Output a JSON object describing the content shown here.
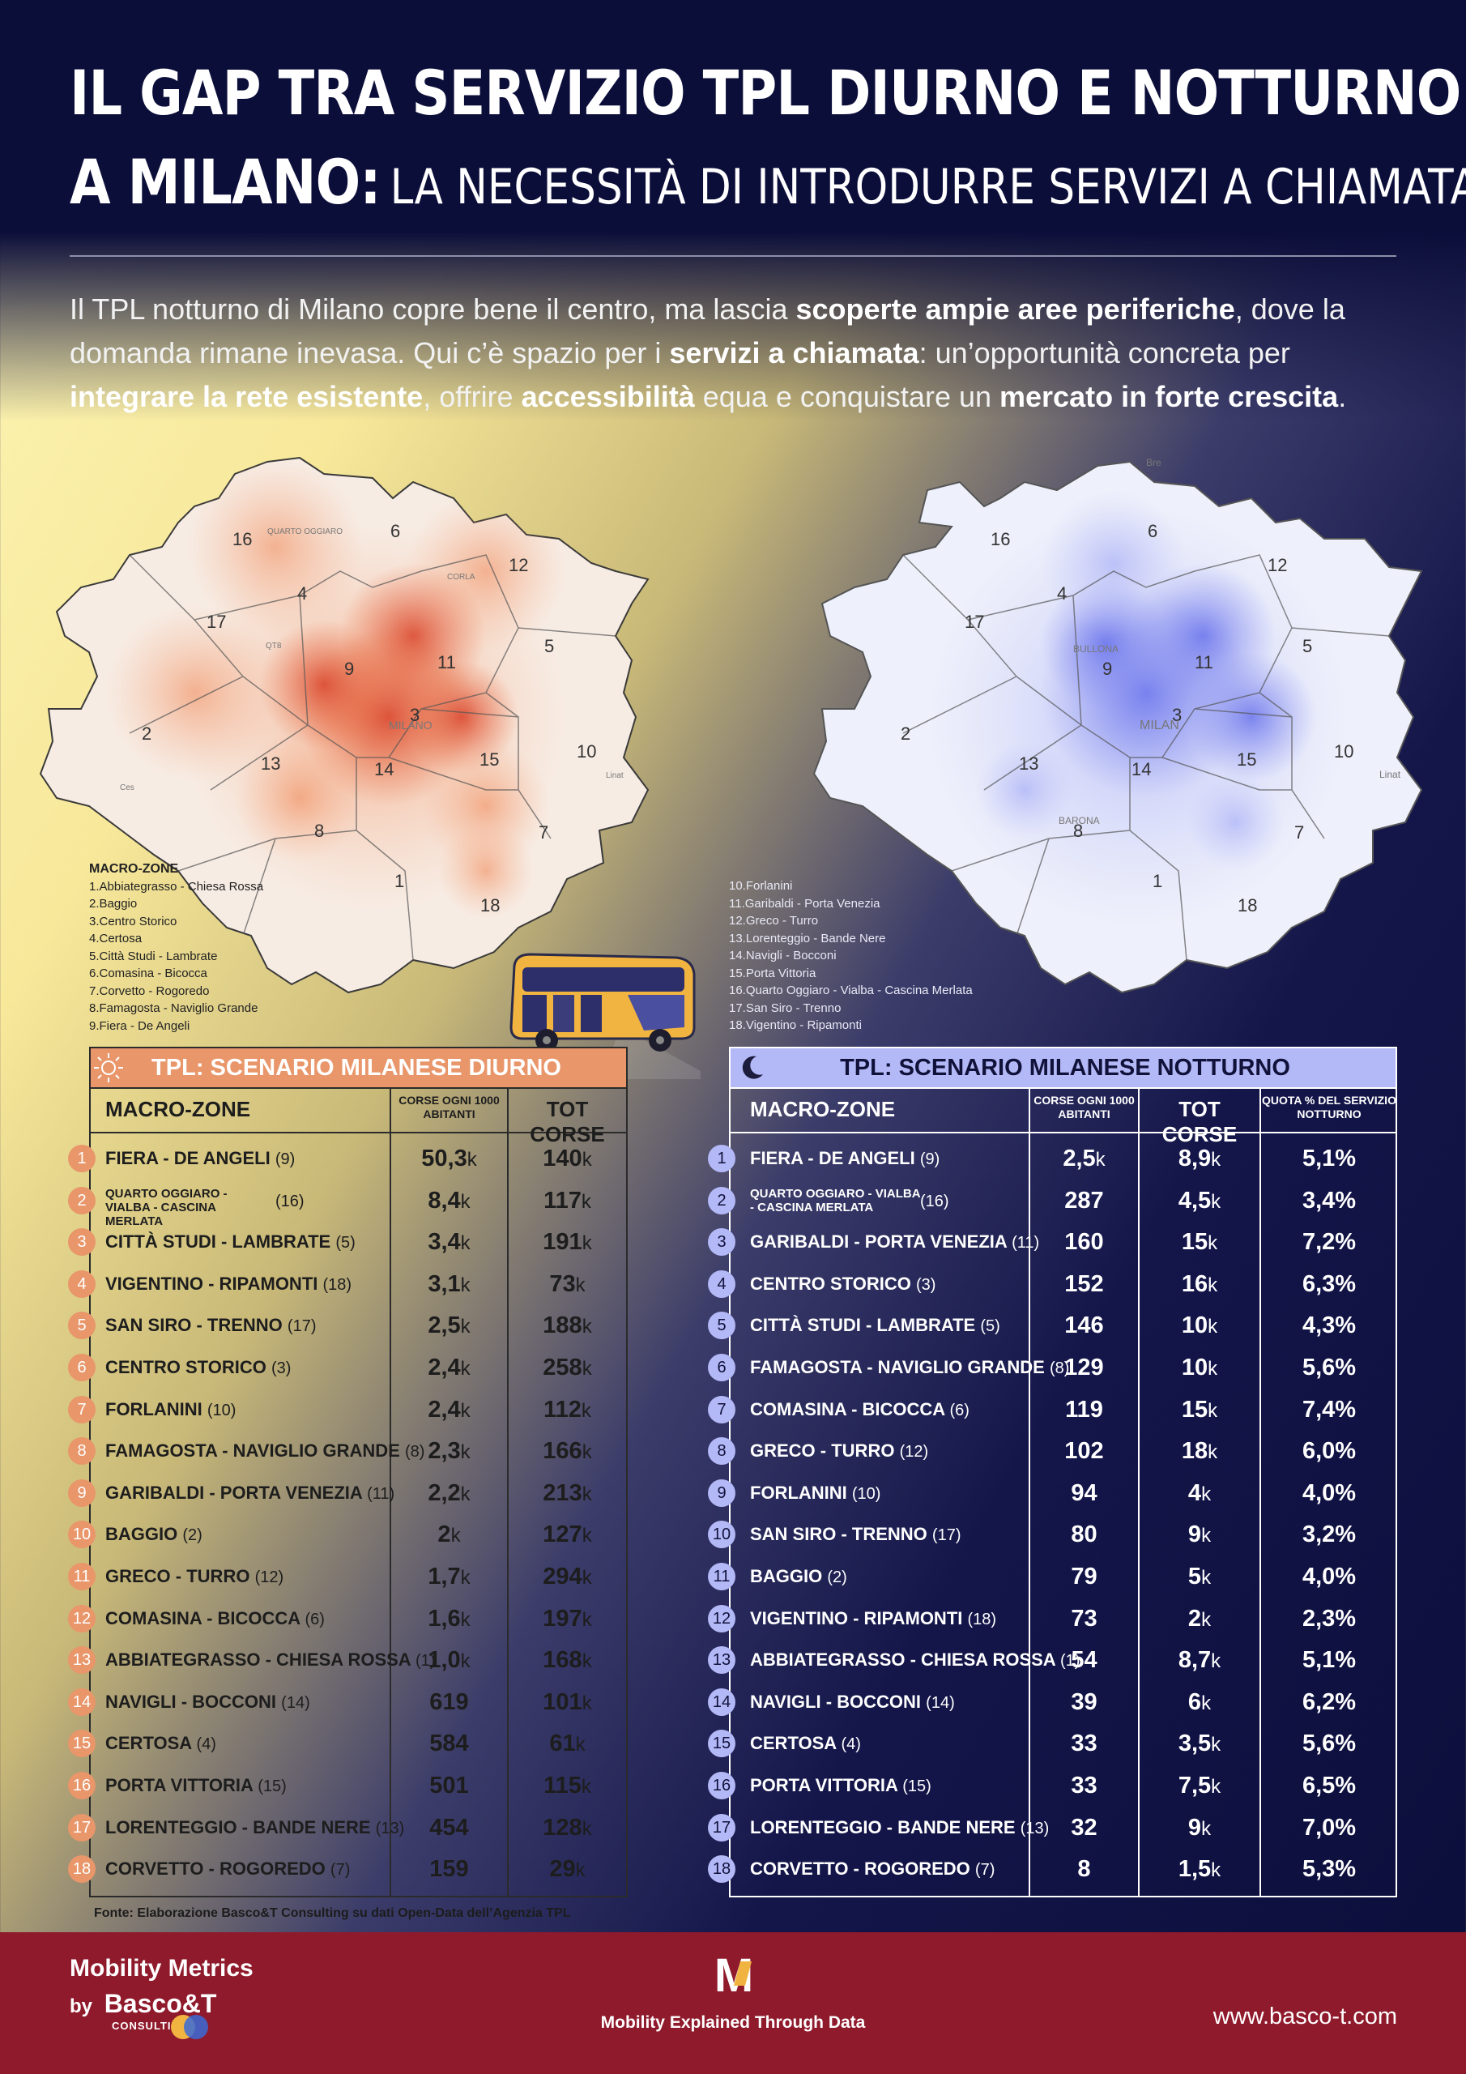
{
  "title": {
    "line1": "IL GAP TRA SERVIZIO TPL DIURNO E NOTTURNO",
    "line2_bold": "A MILANO:",
    "line2_rest": "LA NECESSITÀ DI INTRODURRE SERVIZI A CHIAMATA"
  },
  "intro": {
    "p1": "Il TPL notturno di Milano copre bene il centro, ma lascia ",
    "b1": "scoperte ampie aree periferiche",
    "p2": ", dove la domanda rimane inevasa. Qui c’è spazio per i ",
    "b2": "servizi a chiamata",
    "p3": ": un’opportunità concreta per ",
    "b3": "integrare la rete esistente",
    "p4": ", offrire ",
    "b4": "accessibilità",
    "p5": " equa e conquistare un ",
    "b5": "mercato in forte crescita",
    "p6": "."
  },
  "maps": {
    "zone_numbers": [
      "1",
      "2",
      "3",
      "4",
      "5",
      "6",
      "7",
      "8",
      "9",
      "10",
      "11",
      "12",
      "13",
      "14",
      "15",
      "16",
      "17",
      "18"
    ],
    "day_label": "MILANO",
    "night_label": "MILAN",
    "night_place_labels": [
      "Bre",
      "BULLONA",
      "Linat",
      "BARONA"
    ],
    "day_place_labels": [
      "QUARTO OGGIARO",
      "CORLA",
      "QT8",
      "Linat",
      "Ces"
    ]
  },
  "legend": {
    "heading": "MACRO-ZONE",
    "left": [
      "1.Abbiategrasso - Chiesa Rossa",
      "2.Baggio",
      "3.Centro Storico",
      "4.Certosa",
      "5.Città Studi - Lambrate",
      "6.Comasina - Bicocca",
      "7.Corvetto - Rogoredo",
      "8.Famagosta - Naviglio Grande",
      "9.Fiera - De Angeli"
    ],
    "right": [
      "10.Forlanini",
      "11.Garibaldi - Porta Venezia",
      "12.Greco - Turro",
      "13.Lorenteggio - Bande Nere",
      "14.Navigli - Bocconi",
      "15.Porta Vittoria",
      "16.Quarto Oggiaro - Vialba - Cascina Merlata",
      "17.San Siro - Trenno",
      "18.Vigentino - Ripamonti"
    ]
  },
  "day_table": {
    "title": "TPL: SCENARIO MILANESE DIURNO",
    "col_zone": "MACRO-ZONE",
    "col_rate": "CORSE OGNI 1000 ABITANTI",
    "col_tot": "TOT CORSE",
    "rows": [
      {
        "n": "1",
        "name": "FIERA - DE ANGELI",
        "code": "(9)",
        "rate": "50,3",
        "rate_u": "k",
        "tot": "140",
        "tot_u": "k"
      },
      {
        "n": "2",
        "name": "QUARTO OGGIARO - VIALBA - CASCINA MERLATA",
        "code": "(16)",
        "rate": "8,4",
        "rate_u": "k",
        "tot": "117",
        "tot_u": "k",
        "two_line": true
      },
      {
        "n": "3",
        "name": "CITTÀ STUDI - LAMBRATE",
        "code": "(5)",
        "rate": "3,4",
        "rate_u": "k",
        "tot": "191",
        "tot_u": "k"
      },
      {
        "n": "4",
        "name": "VIGENTINO - RIPAMONTI",
        "code": "(18)",
        "rate": "3,1",
        "rate_u": "k",
        "tot": "73",
        "tot_u": "k"
      },
      {
        "n": "5",
        "name": "SAN SIRO - TRENNO",
        "code": "(17)",
        "rate": "2,5",
        "rate_u": "k",
        "tot": "188",
        "tot_u": "k"
      },
      {
        "n": "6",
        "name": "CENTRO STORICO",
        "code": "(3)",
        "rate": "2,4",
        "rate_u": "k",
        "tot": "258",
        "tot_u": "k"
      },
      {
        "n": "7",
        "name": "FORLANINI",
        "code": "(10)",
        "rate": "2,4",
        "rate_u": "k",
        "tot": "112",
        "tot_u": "k"
      },
      {
        "n": "8",
        "name": "FAMAGOSTA - NAVIGLIO GRANDE",
        "code": "(8)",
        "rate": "2,3",
        "rate_u": "k",
        "tot": "166",
        "tot_u": "k"
      },
      {
        "n": "9",
        "name": "GARIBALDI - PORTA VENEZIA",
        "code": "(11)",
        "rate": "2,2",
        "rate_u": "k",
        "tot": "213",
        "tot_u": "k"
      },
      {
        "n": "10",
        "name": "BAGGIO",
        "code": "(2)",
        "rate": "2",
        "rate_u": "k",
        "tot": "127",
        "tot_u": "k"
      },
      {
        "n": "11",
        "name": "GRECO - TURRO",
        "code": "(12)",
        "rate": "1,7",
        "rate_u": "k",
        "tot": "294",
        "tot_u": "k"
      },
      {
        "n": "12",
        "name": "COMASINA - BICOCCA",
        "code": "(6)",
        "rate": "1,6",
        "rate_u": "k",
        "tot": "197",
        "tot_u": "k"
      },
      {
        "n": "13",
        "name": "ABBIATEGRASSO - CHIESA ROSSA",
        "code": "(1)",
        "rate": "1,0",
        "rate_u": "k",
        "tot": "168",
        "tot_u": "k"
      },
      {
        "n": "14",
        "name": "NAVIGLI - BOCCONI",
        "code": "(14)",
        "rate": "619",
        "rate_u": "",
        "tot": "101",
        "tot_u": "k"
      },
      {
        "n": "15",
        "name": "CERTOSA",
        "code": "(4)",
        "rate": "584",
        "rate_u": "",
        "tot": "61",
        "tot_u": "k"
      },
      {
        "n": "16",
        "name": "PORTA VITTORIA",
        "code": "(15)",
        "rate": "501",
        "rate_u": "",
        "tot": "115",
        "tot_u": "k"
      },
      {
        "n": "17",
        "name": "LORENTEGGIO - BANDE NERE",
        "code": "(13)",
        "rate": "454",
        "rate_u": "",
        "tot": "128",
        "tot_u": "k"
      },
      {
        "n": "18",
        "name": "CORVETTO - ROGOREDO",
        "code": "(7)",
        "rate": "159",
        "rate_u": "",
        "tot": "29",
        "tot_u": "k"
      }
    ]
  },
  "night_table": {
    "title": "TPL: SCENARIO MILANESE NOTTURNO",
    "col_zone": "MACRO-ZONE",
    "col_rate": "CORSE OGNI 1000 ABITANTI",
    "col_tot": "TOT CORSE",
    "col_share": "QUOTA % DEL SERVIZIO NOTTURNO",
    "rows": [
      {
        "n": "1",
        "name": "FIERA - DE ANGELI",
        "code": "(9)",
        "rate": "2,5",
        "rate_u": "k",
        "tot": "8,9",
        "tot_u": "k",
        "share": "5,1%"
      },
      {
        "n": "2",
        "name": "QUARTO OGGIARO - VIALBA - CASCINA MERLATA",
        "code": "(16)",
        "rate": "287",
        "rate_u": "",
        "tot": "4,5",
        "tot_u": "k",
        "share": "3,4%",
        "two_line": true
      },
      {
        "n": "3",
        "name": "GARIBALDI - PORTA VENEZIA",
        "code": "(11)",
        "rate": "160",
        "rate_u": "",
        "tot": "15",
        "tot_u": "k",
        "share": "7,2%"
      },
      {
        "n": "4",
        "name": "CENTRO STORICO",
        "code": "(3)",
        "rate": "152",
        "rate_u": "",
        "tot": "16",
        "tot_u": "k",
        "share": "6,3%"
      },
      {
        "n": "5",
        "name": "CITTÀ STUDI - LAMBRATE",
        "code": "(5)",
        "rate": "146",
        "rate_u": "",
        "tot": "10",
        "tot_u": "k",
        "share": "4,3%"
      },
      {
        "n": "6",
        "name": "FAMAGOSTA - NAVIGLIO GRANDE",
        "code": "(8)",
        "rate": "129",
        "rate_u": "",
        "tot": "10",
        "tot_u": "k",
        "share": "5,6%"
      },
      {
        "n": "7",
        "name": "COMASINA - BICOCCA",
        "code": "(6)",
        "rate": "119",
        "rate_u": "",
        "tot": "15",
        "tot_u": "k",
        "share": "7,4%"
      },
      {
        "n": "8",
        "name": "GRECO - TURRO",
        "code": "(12)",
        "rate": "102",
        "rate_u": "",
        "tot": "18",
        "tot_u": "k",
        "share": "6,0%"
      },
      {
        "n": "9",
        "name": "FORLANINI",
        "code": "(10)",
        "rate": "94",
        "rate_u": "",
        "tot": "4",
        "tot_u": "k",
        "share": "4,0%"
      },
      {
        "n": "10",
        "name": "SAN SIRO - TRENNO",
        "code": "(17)",
        "rate": "80",
        "rate_u": "",
        "tot": "9",
        "tot_u": "k",
        "share": "3,2%"
      },
      {
        "n": "11",
        "name": "BAGGIO",
        "code": "(2)",
        "rate": "79",
        "rate_u": "",
        "tot": "5",
        "tot_u": "k",
        "share": "4,0%"
      },
      {
        "n": "12",
        "name": "VIGENTINO - RIPAMONTI",
        "code": "(18)",
        "rate": "73",
        "rate_u": "",
        "tot": "2",
        "tot_u": "k",
        "share": "2,3%"
      },
      {
        "n": "13",
        "name": "ABBIATEGRASSO - CHIESA ROSSA",
        "code": "(1)",
        "rate": "54",
        "rate_u": "",
        "tot": "8,7",
        "tot_u": "k",
        "share": "5,1%"
      },
      {
        "n": "14",
        "name": "NAVIGLI - BOCCONI",
        "code": "(14)",
        "rate": "39",
        "rate_u": "",
        "tot": "6",
        "tot_u": "k",
        "share": "6,2%"
      },
      {
        "n": "15",
        "name": "CERTOSA",
        "code": "(4)",
        "rate": "33",
        "rate_u": "",
        "tot": "3,5",
        "tot_u": "k",
        "share": "5,6%"
      },
      {
        "n": "16",
        "name": "PORTA VITTORIA",
        "code": "(15)",
        "rate": "33",
        "rate_u": "",
        "tot": "7,5",
        "tot_u": "k",
        "share": "6,5%"
      },
      {
        "n": "17",
        "name": "LORENTEGGIO - BANDE NERE",
        "code": "(13)",
        "rate": "32",
        "rate_u": "",
        "tot": "9",
        "tot_u": "k",
        "share": "7,0%"
      },
      {
        "n": "18",
        "name": "CORVETTO - ROGOREDO",
        "code": "(7)",
        "rate": "8",
        "rate_u": "",
        "tot": "1,5",
        "tot_u": "k",
        "share": "5,3%"
      }
    ]
  },
  "source": "Fonte: Elaborazione Basco&T Consulting su dati Open-Data dell’Agenzia TPL",
  "footer": {
    "brand_line1": "Mobility Metrics",
    "brand_by": "by",
    "brand_company": "Basco&T",
    "brand_consulting": "CONSULTING",
    "logo_letter": "M",
    "tagline": "Mobility Explained Through Data",
    "website": "www.basco-t.com"
  },
  "colors": {
    "night_bg": "#0c0e3a",
    "day_accent": "#e8966a",
    "night_accent": "#aab0f5",
    "footer": "#8f1a2c"
  }
}
